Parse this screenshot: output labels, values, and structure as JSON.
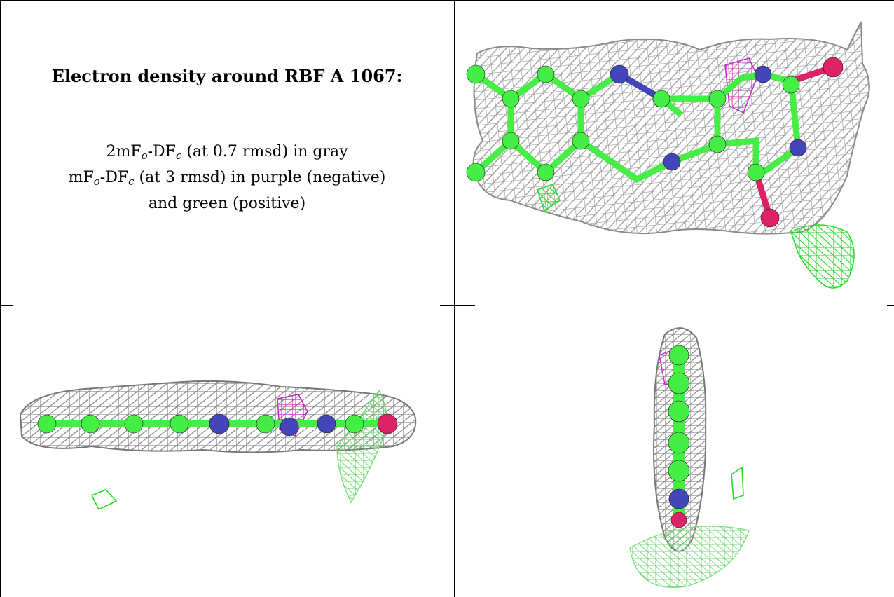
{
  "caption": {
    "title": "Electron density around RBF A 1067:",
    "line1": {
      "a": "2mF",
      "s1": "o",
      "b": "-DF",
      "s2": "c",
      "c": " (at 0.7 rmsd) in gray"
    },
    "line2": {
      "a": "mF",
      "s1": "o",
      "b": "-DF",
      "s2": "c",
      "c": " (at 3 rmsd) in purple (negative)"
    },
    "line3": "and green (positive)"
  },
  "colors": {
    "mesh_2fofc": "#9a9a9a",
    "fofc_negative": "#cc22cc",
    "fofc_positive": "#22dd22",
    "carbon": "#44ee44",
    "nitrogen": "#4444bb",
    "oxygen": "#dd2266"
  },
  "views": [
    "top-view",
    "side-view",
    "end-view"
  ]
}
